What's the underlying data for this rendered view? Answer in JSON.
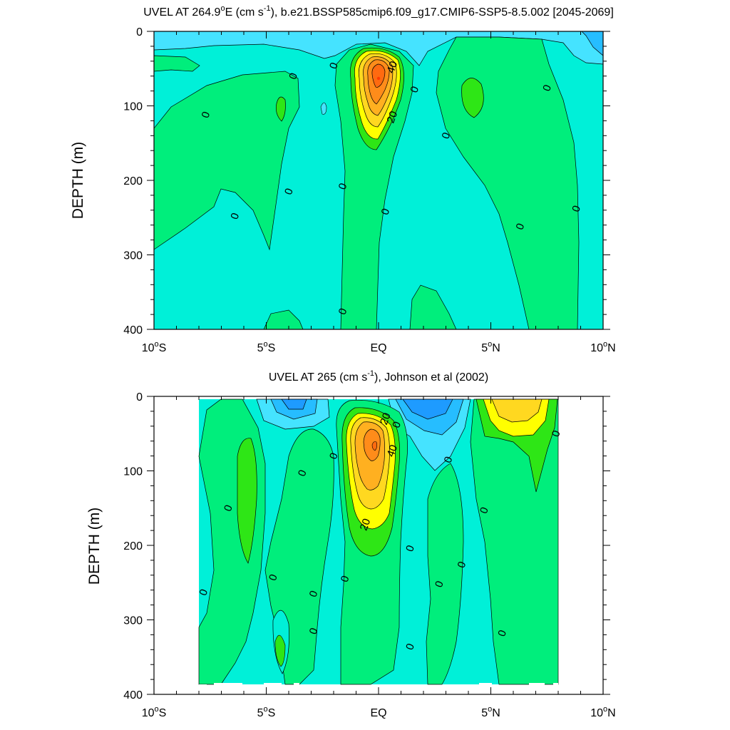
{
  "chart_data": [
    {
      "type": "heatmap",
      "title": "UVEL AT 264.9°E (cm s⁻¹), b.e21.BSSP585cmip6.f09_g17.CMIP6-SSP5-8.5.002 [2045-2069]",
      "title_parts": {
        "main": "UVEL AT 264.9",
        "deg": "o",
        "mid": "E (cm s",
        "exp": "-1",
        "rest": "), b.e21.BSSP585cmip6.f09_g17.CMIP6-SSP5-8.5.002 [2045-2069]"
      },
      "xlabel": "",
      "ylabel": "DEPTH (m)",
      "xlim": [
        -10,
        10
      ],
      "ylim": [
        400,
        0
      ],
      "x_ticks": [
        {
          "value": -10,
          "num": "10",
          "deg": "o",
          "hem": "S"
        },
        {
          "value": -5,
          "num": "5",
          "deg": "o",
          "hem": "S"
        },
        {
          "value": 0,
          "num": "EQ",
          "deg": "",
          "hem": ""
        },
        {
          "value": 5,
          "num": "5",
          "deg": "o",
          "hem": "N"
        },
        {
          "value": 10,
          "num": "10",
          "deg": "o",
          "hem": "N"
        }
      ],
      "y_ticks": [
        0,
        100,
        200,
        300,
        400
      ],
      "jet_core": {
        "lat": 0.0,
        "depth": 65,
        "max_speed": 60
      },
      "contour_labels": [
        {
          "text": "40",
          "lat": 0.6,
          "depth": 48
        },
        {
          "text": "20",
          "lat": 0.6,
          "depth": 115
        },
        {
          "text": "0",
          "lat": -7.7,
          "depth": 112
        },
        {
          "text": "0",
          "lat": -3.8,
          "depth": 60
        },
        {
          "text": "0",
          "lat": -2.0,
          "depth": 46
        },
        {
          "text": "0",
          "lat": 1.6,
          "depth": 78
        },
        {
          "text": "0",
          "lat": 7.5,
          "depth": 76
        },
        {
          "text": "0",
          "lat": 3.0,
          "depth": 140
        },
        {
          "text": "0",
          "lat": -4.0,
          "depth": 215
        },
        {
          "text": "0",
          "lat": -1.6,
          "depth": 208
        },
        {
          "text": "0",
          "lat": -6.4,
          "depth": 248
        },
        {
          "text": "0",
          "lat": 0.3,
          "depth": 242
        },
        {
          "text": "0",
          "lat": 8.8,
          "depth": 238
        },
        {
          "text": "0",
          "lat": 6.3,
          "depth": 262
        },
        {
          "text": "0",
          "lat": -1.6,
          "depth": 376
        }
      ]
    },
    {
      "type": "heatmap",
      "title": "UVEL AT 265 (cm s⁻¹), Johnson et al (2002)",
      "title_parts": {
        "main": "UVEL AT 265 (cm s",
        "deg": "",
        "mid": "",
        "exp": "-1",
        "rest": "), Johnson et al (2002)"
      },
      "xlabel": "",
      "ylabel": "DEPTH (m)",
      "xlim": [
        -10,
        10
      ],
      "ylim": [
        400,
        0
      ],
      "x_ticks": [
        {
          "value": -10,
          "num": "10",
          "deg": "o",
          "hem": "S"
        },
        {
          "value": -5,
          "num": "5",
          "deg": "o",
          "hem": "S"
        },
        {
          "value": 0,
          "num": "EQ",
          "deg": "",
          "hem": ""
        },
        {
          "value": 5,
          "num": "5",
          "deg": "o",
          "hem": "N"
        },
        {
          "value": 10,
          "num": "10",
          "deg": "o",
          "hem": "N"
        }
      ],
      "y_ticks": [
        0,
        100,
        200,
        300,
        400
      ],
      "data_lat_range": [
        -8,
        8
      ],
      "jet_core": {
        "lat": -0.2,
        "depth": 68,
        "max_speed": 50
      },
      "contour_labels": [
        {
          "text": "20",
          "lat": 0.3,
          "depth": 30
        },
        {
          "text": "0",
          "lat": 0.8,
          "depth": 38
        },
        {
          "text": "40",
          "lat": 0.6,
          "depth": 73
        },
        {
          "text": "20",
          "lat": -0.6,
          "depth": 172
        },
        {
          "text": "0",
          "lat": 7.9,
          "depth": 50
        },
        {
          "text": "0",
          "lat": -2.0,
          "depth": 80
        },
        {
          "text": "0",
          "lat": 3.1,
          "depth": 85
        },
        {
          "text": "0",
          "lat": -3.4,
          "depth": 103
        },
        {
          "text": "0",
          "lat": -6.7,
          "depth": 150
        },
        {
          "text": "0",
          "lat": 4.7,
          "depth": 153
        },
        {
          "text": "0",
          "lat": 1.4,
          "depth": 204
        },
        {
          "text": "0",
          "lat": 3.7,
          "depth": 226
        },
        {
          "text": "0",
          "lat": -4.7,
          "depth": 243
        },
        {
          "text": "0",
          "lat": -1.5,
          "depth": 245
        },
        {
          "text": "0",
          "lat": 2.7,
          "depth": 252
        },
        {
          "text": "0",
          "lat": -2.9,
          "depth": 265
        },
        {
          "text": "0",
          "lat": -7.8,
          "depth": 263
        },
        {
          "text": "0",
          "lat": -2.9,
          "depth": 315
        },
        {
          "text": "0",
          "lat": 5.5,
          "depth": 318
        },
        {
          "text": "0",
          "lat": 1.4,
          "depth": 336
        }
      ]
    }
  ],
  "colors": {
    "neg4": "#0f7fff",
    "neg3": "#1e9bff",
    "neg2": "#26bdff",
    "neg1": "#45e3ff",
    "zero_neg": "#00f0d8",
    "pos0": "#00ee7c",
    "pos1": "#2ee616",
    "pos2": "#a3ee0c",
    "pos3": "#ffff00",
    "pos4": "#ffd820",
    "pos5": "#ffb020",
    "pos6": "#ff8c1a",
    "pos7": "#ff6a10",
    "pos8": "#ff3b00"
  }
}
